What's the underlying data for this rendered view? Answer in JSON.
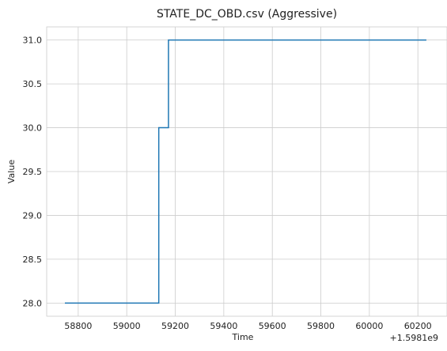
{
  "chart_data": {
    "type": "line",
    "title": "STATE_DC_OBD.csv (Aggressive)",
    "xlabel": "Time",
    "ylabel": "Value",
    "x_offset_label": "+1.5981e9",
    "xlim": [
      58670,
      60320
    ],
    "ylim": [
      27.85,
      31.15
    ],
    "x_ticks": [
      58800,
      59000,
      59200,
      59400,
      59600,
      59800,
      60000,
      60200
    ],
    "y_ticks": [
      28.0,
      28.5,
      29.0,
      29.5,
      30.0,
      30.5,
      31.0
    ],
    "grid": true,
    "series": [
      {
        "color": "#1f77b4",
        "step": true,
        "x": [
          58745,
          59132,
          59132,
          59172,
          59172,
          60235
        ],
        "y": [
          28.0,
          28.0,
          30.0,
          30.0,
          31.0,
          31.0
        ]
      }
    ]
  }
}
